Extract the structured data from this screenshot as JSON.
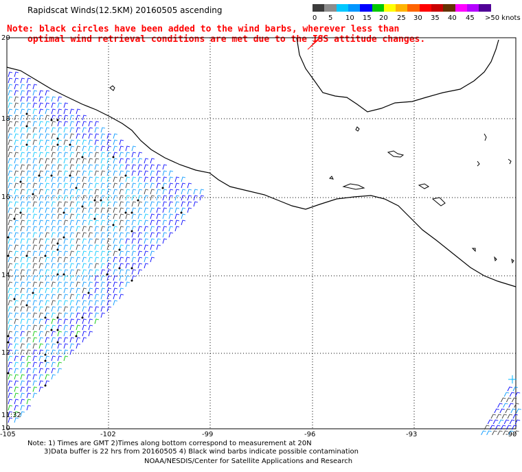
{
  "title": "Rapidscat Winds(12.5KM) 20160505 ascending",
  "note": {
    "line1": "Note: black circles have been added to the wind barbs, wherever less than",
    "line2": "optimal wind retrieval conditions are met due to the ISS attitude changes."
  },
  "legend": {
    "colors": [
      "#3c3c3c",
      "#8c8c8c",
      "#00c8ff",
      "#0096ff",
      "#0000ff",
      "#00c800",
      "#ffff00",
      "#ffb400",
      "#ff6400",
      "#ff0000",
      "#c80000",
      "#643200",
      "#ff00ff",
      "#b400ff",
      "#500096"
    ],
    "labels": [
      "0",
      "5",
      "10",
      "15",
      "20",
      "25",
      "30",
      "35",
      "40",
      "45",
      ">50 knots"
    ]
  },
  "axes": {
    "lat_labels": [
      "20",
      "18",
      "16",
      "14",
      "12",
      "11:32",
      "10"
    ],
    "lon_labels": [
      "-105",
      "-102",
      "-99",
      "-96",
      "-93",
      "-90"
    ]
  },
  "footer": {
    "line1": "Note: 1) Times are GMT 2)Times along bottom correspond to measurement at 20N",
    "line2": "3)Data buffer is 22 hrs from 20160505 4) Black wind barbs indicate possible contamination",
    "line3": "NOAA/NESDIS/Center for Satellite Applications and Research"
  }
}
